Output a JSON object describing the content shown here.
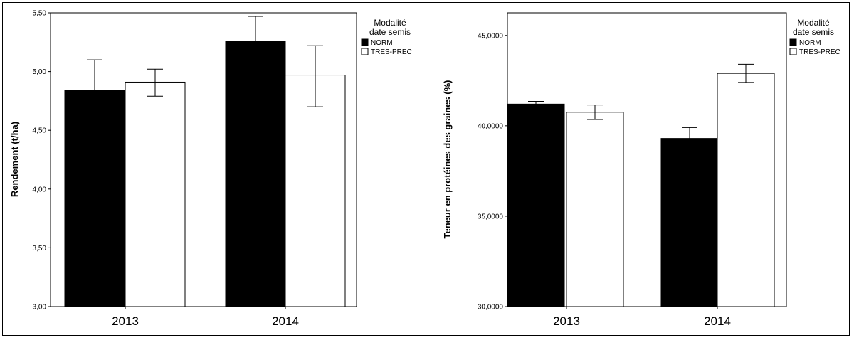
{
  "chart_data": [
    {
      "type": "bar",
      "ylabel": "Rendement (t/ha)",
      "categories": [
        "2013",
        "2014"
      ],
      "ylim": [
        3.0,
        5.5
      ],
      "yticks": [
        "3,00",
        "3,50",
        "4,00",
        "4,50",
        "5,00",
        "5,50"
      ],
      "series": [
        {
          "name": "NORM",
          "values": [
            4.84,
            5.26
          ],
          "err_low": [
            3.0,
            3.0
          ],
          "err_high": [
            5.1,
            5.47
          ],
          "color": "#000000"
        },
        {
          "name": "TRES-PREC",
          "values": [
            4.91,
            4.97
          ],
          "err_low": [
            4.79,
            4.7
          ],
          "err_high": [
            5.02,
            5.22
          ],
          "color": "#ffffff"
        }
      ],
      "legend": {
        "title": [
          "Modalité",
          "date semis"
        ],
        "position": "right"
      }
    },
    {
      "type": "bar",
      "ylabel": "Teneur en protéines des graines (%)",
      "categories": [
        "2013",
        "2014"
      ],
      "ylim": [
        30.0,
        46.25
      ],
      "yticks": [
        "30,0000",
        "35,0000",
        "40,0000",
        "45,0000"
      ],
      "series": [
        {
          "name": "NORM",
          "values": [
            41.2,
            39.3
          ],
          "err_low": [
            41.0,
            38.75
          ],
          "err_high": [
            41.35,
            39.9
          ],
          "color": "#000000"
        },
        {
          "name": "TRES-PREC",
          "values": [
            40.75,
            42.9
          ],
          "err_low": [
            40.35,
            42.4
          ],
          "err_high": [
            41.15,
            43.4
          ],
          "color": "#ffffff"
        }
      ],
      "legend": {
        "title": [
          "Modalité",
          "date semis"
        ],
        "position": "right"
      }
    }
  ]
}
